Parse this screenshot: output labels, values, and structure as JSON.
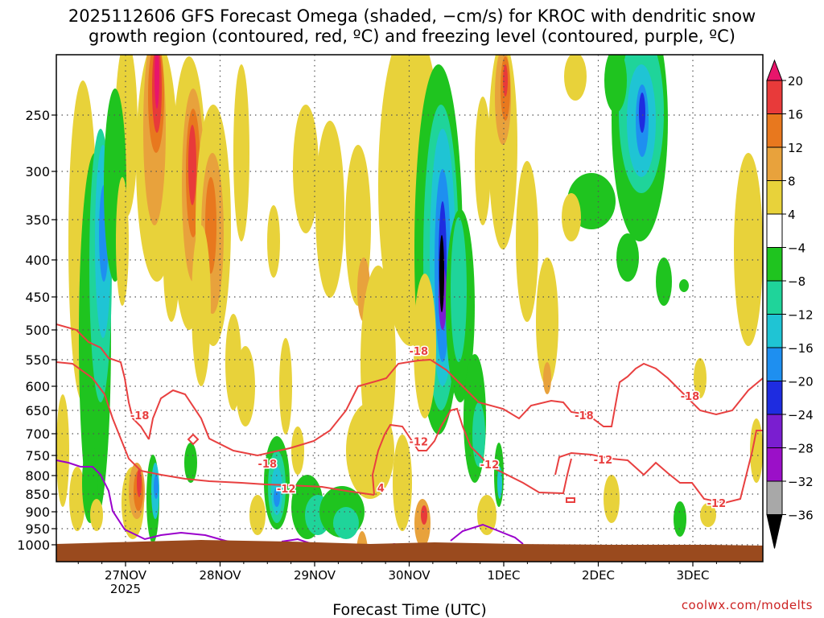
{
  "title": {
    "line1": "2025112606 GFS Forecast Omega (shaded, −cm/s) for KROC with dendritic snow",
    "line2": "growth region (contoured, red, ºC) and freezing level (contoured, purple, ºC)"
  },
  "credit": "coolwx.com/modelts",
  "chart_data": {
    "type": "heatmap",
    "xlabel": "Forecast Time (UTC)",
    "ylabel": "",
    "x_ticks": [
      "27NOV",
      "28NOV",
      "29NOV",
      "30NOV",
      "1DEC",
      "2DEC",
      "3DEC"
    ],
    "x_tick_sublabel": "2025",
    "x_range_days": [
      26.25,
      3.75
    ],
    "y_ticks": [
      250,
      300,
      350,
      400,
      450,
      500,
      550,
      600,
      650,
      700,
      750,
      800,
      850,
      900,
      950,
      1000
    ],
    "y_range_hpa": [
      200,
      1000
    ],
    "grid": true,
    "colorbar": {
      "labels": [
        "20",
        "16",
        "12",
        "8",
        "4",
        "−4",
        "−8",
        "−12",
        "−16",
        "−20",
        "−24",
        "−28",
        "−32",
        "−36"
      ],
      "colors": [
        "#e8156b",
        "#e83a3a",
        "#e8781e",
        "#e8a23c",
        "#e8d23a",
        "#ffffff",
        "#1fc41f",
        "#1fd49a",
        "#1fc4d4",
        "#1e8ff0",
        "#1e2ce0",
        "#7a1ed0",
        "#9b10c8",
        "#a8a8a8",
        "#000000"
      ]
    },
    "contour_labels": [
      {
        "text": "-18",
        "day": 27.15,
        "hpa": 660
      },
      {
        "text": "-18",
        "day": 28.5,
        "hpa": 770
      },
      {
        "text": "-12",
        "day": 28.7,
        "hpa": 835
      },
      {
        "text": "-18",
        "day": 30.1,
        "hpa": 535
      },
      {
        "text": "-12",
        "day": 30.1,
        "hpa": 718
      },
      {
        "text": "4",
        "day": 29.7,
        "hpa": 833
      },
      {
        "text": "-12",
        "day": 30.85,
        "hpa": 772
      },
      {
        "text": "-18",
        "day": 31.85,
        "hpa": 660
      },
      {
        "text": "-12",
        "day": 32.05,
        "hpa": 760
      },
      {
        "text": "-18",
        "day": 32.97,
        "hpa": 620
      },
      {
        "text": "-12",
        "day": 33.25,
        "hpa": 875
      }
    ],
    "ground_color": "#9a4a1e",
    "dgz_color": "#e84040",
    "freezing_color": "#9a00cc"
  }
}
